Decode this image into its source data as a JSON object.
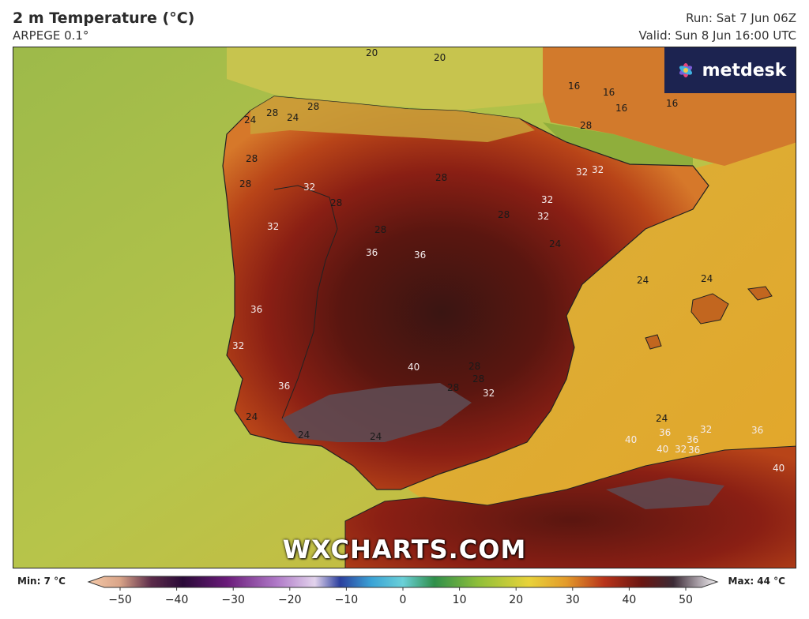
{
  "header": {
    "title": "2 m Temperature (°C)",
    "model": "ARPEGE 0.1°",
    "run": "Run: Sat 7 Jun 06Z",
    "valid": "Valid: Sun 8 Jun 16:00 UTC"
  },
  "logo": {
    "name": "metdesk",
    "icon": "asterisk-flower-icon"
  },
  "watermark": "WXCHARTS.COM",
  "contour_labels": [
    "24",
    "20",
    "20",
    "24",
    "24",
    "20",
    "28",
    "16",
    "16",
    "16",
    "16",
    "28",
    "24",
    "28",
    "24",
    "28",
    "28",
    "28",
    "32",
    "32",
    "32",
    "28",
    "28",
    "32",
    "32",
    "32",
    "28",
    "36",
    "36",
    "28",
    "24",
    "24",
    "24",
    "36",
    "32",
    "28",
    "40",
    "28",
    "28",
    "32",
    "36",
    "24",
    "24",
    "24",
    "24",
    "40",
    "32",
    "36",
    "40",
    "36",
    "32",
    "40",
    "36",
    "36"
  ],
  "colorbar": {
    "min_label": "Min: 7 °C",
    "max_label": "Max: 44 °C",
    "ticks": [
      "−50",
      "−40",
      "−30",
      "−20",
      "−10",
      "0",
      "10",
      "20",
      "30",
      "40",
      "50"
    ],
    "range": [
      -50,
      50
    ]
  },
  "colors": {
    "sea_cool": "#d4a938",
    "sea_warm": "#e0a32a",
    "land_hot": "#8a1f14",
    "land_very_hot": "#3a1512",
    "land_extreme": "#5e4a52",
    "cool_green": "#a9c156",
    "atlantic": "#bcc64c",
    "logo_bg": "#1c2350"
  }
}
